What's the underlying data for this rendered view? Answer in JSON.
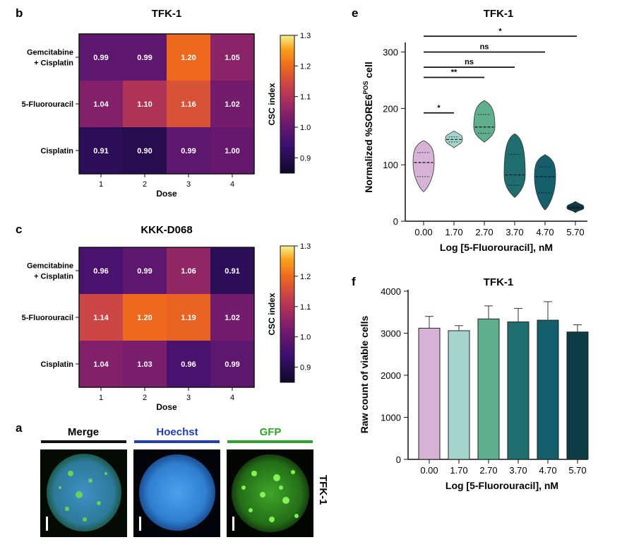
{
  "chart_data": [
    {
      "type": "heatmap",
      "panel": "b",
      "title": "TFK-1",
      "rows": [
        "Gemcitabine\n+ Cisplatin",
        "5-Fluorouracil",
        "Cisplatin"
      ],
      "columns": [
        "1",
        "2",
        "3",
        "4"
      ],
      "values": [
        [
          0.99,
          0.99,
          1.2,
          1.05
        ],
        [
          1.04,
          1.1,
          1.16,
          1.02
        ],
        [
          0.91,
          0.9,
          0.99,
          1.0
        ]
      ],
      "xlabel": "Dose",
      "colorbar_label": "CSC index",
      "colorbar_range": [
        0.85,
        1.3
      ],
      "colorbar_ticks": [
        "1.3",
        "1.2",
        "1.1",
        "1.0",
        "0.9"
      ]
    },
    {
      "type": "heatmap",
      "panel": "c",
      "title": "KKK-D068",
      "rows": [
        "Gemcitabine\n+ Cisplatin",
        "5-Fluorouracil",
        "Cisplatin"
      ],
      "columns": [
        "1",
        "2",
        "3",
        "4"
      ],
      "values": [
        [
          0.96,
          0.99,
          1.06,
          0.91
        ],
        [
          1.14,
          1.2,
          1.19,
          1.02
        ],
        [
          1.04,
          1.03,
          0.96,
          0.99
        ]
      ],
      "xlabel": "Dose",
      "colorbar_label": "CSC index",
      "colorbar_range": [
        0.85,
        1.3
      ],
      "colorbar_ticks": [
        "1.3",
        "1.2",
        "1.1",
        "1.0",
        "0.9"
      ]
    },
    {
      "type": "violin",
      "panel": "e",
      "title": "TFK-1",
      "categories": [
        "0.00",
        "1.70",
        "2.70",
        "3.70",
        "4.70",
        "5.70"
      ],
      "colors": [
        "#d7b3d8",
        "#a5d4cc",
        "#5fae8e",
        "#1f6d6e",
        "#155e6b",
        "#0d3b46"
      ],
      "medians": [
        104,
        145,
        167,
        82,
        79,
        24
      ],
      "ranges": [
        [
          52,
          143
        ],
        [
          130,
          160
        ],
        [
          140,
          214
        ],
        [
          42,
          155
        ],
        [
          20,
          118
        ],
        [
          15,
          35
        ]
      ],
      "xlabel": "Log [5-Fluorouracil], nM",
      "ylabel_main": "Normalized %SORE6",
      "ylabel_sup": "POS",
      "ylabel_tail": " cell",
      "ylim": [
        0,
        300
      ],
      "yticks": [
        "0",
        "100",
        "200",
        "300"
      ],
      "significance": [
        {
          "from": "0.00",
          "to": "1.70",
          "label": "*",
          "y": 192
        },
        {
          "from": "0.00",
          "to": "2.70",
          "label": "**",
          "y": 255
        },
        {
          "from": "0.00",
          "to": "3.70",
          "label": "ns",
          "y": 273
        },
        {
          "from": "0.00",
          "to": "4.70",
          "label": "ns",
          "y": 300
        },
        {
          "from": "0.00",
          "to": "5.70",
          "label": "*",
          "y": 328
        }
      ]
    },
    {
      "type": "bar",
      "panel": "f",
      "title": "TFK-1",
      "categories": [
        "0.00",
        "1.70",
        "2.70",
        "3.70",
        "4.70",
        "5.70"
      ],
      "values": [
        3120,
        3060,
        3340,
        3270,
        3310,
        3030
      ],
      "errors": [
        280,
        120,
        310,
        320,
        440,
        170
      ],
      "colors": [
        "#d7b3d8",
        "#a5d4cc",
        "#5fae8e",
        "#1f6d6e",
        "#155e6b",
        "#0d3b46"
      ],
      "xlabel": "Log [5-Fluorouracil], nM",
      "ylabel": "Raw count of viable cells",
      "ylim": [
        0,
        4000
      ],
      "yticks": [
        "0",
        "1000",
        "2000",
        "3000",
        "4000"
      ]
    }
  ],
  "panel_a": {
    "label": "a",
    "channels": [
      {
        "name": "Merge",
        "color": "#111111"
      },
      {
        "name": "Hoechst",
        "color": "#1f3fbf"
      },
      {
        "name": "GFP",
        "color": "#2aa52a"
      }
    ],
    "cell_line": "TFK-1"
  }
}
